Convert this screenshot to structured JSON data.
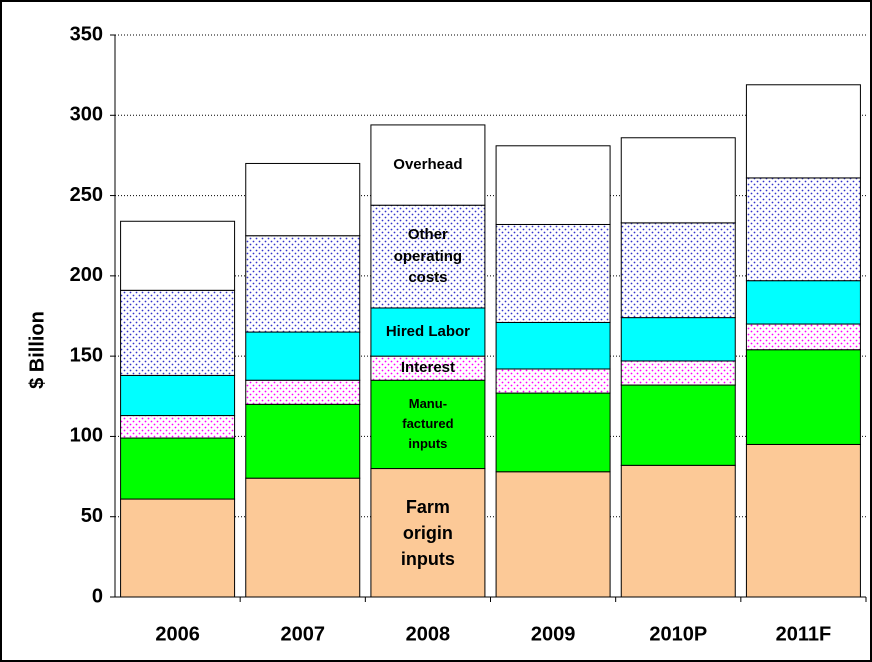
{
  "chart_data": {
    "type": "stacked_bar",
    "y_label": "$ Billion",
    "categories": [
      "2006",
      "2007",
      "2008",
      "2009",
      "2010P",
      "2011F"
    ],
    "series": [
      {
        "name": "Farm\norigin\ninputs",
        "color": "#fcc997",
        "values": [
          61,
          74,
          80,
          78,
          82,
          95
        ]
      },
      {
        "name": "Manu-\nfactured\ninputs",
        "color": "#00ff00",
        "values": [
          38,
          46,
          55,
          49,
          50,
          59
        ]
      },
      {
        "name": "Interest",
        "color": "#ff00ff",
        "pattern": "dots",
        "values": [
          14,
          15,
          15,
          15,
          15,
          16
        ]
      },
      {
        "name": "Hired Labor",
        "color": "#00ffff",
        "values": [
          25,
          30,
          30,
          29,
          27,
          27
        ]
      },
      {
        "name": "Other\noperating\ncosts",
        "color": "#3333cc",
        "pattern": "dots",
        "values": [
          53,
          60,
          64,
          61,
          59,
          64
        ]
      },
      {
        "name": "Overhead",
        "color": "#ffffff",
        "values": [
          43,
          45,
          50,
          49,
          53,
          58
        ]
      }
    ],
    "ylim": [
      0,
      350
    ],
    "yticks": [
      0,
      50,
      100,
      150,
      200,
      250,
      300,
      350
    ],
    "grid": true
  }
}
